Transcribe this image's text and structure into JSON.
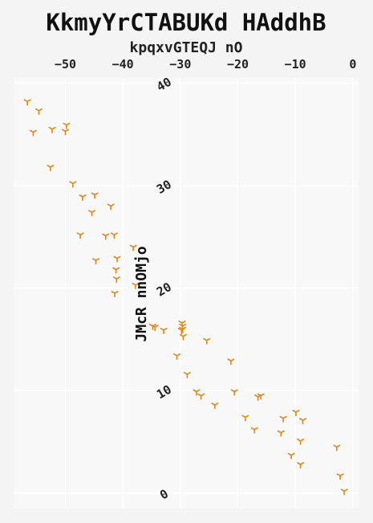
{
  "chart_data": {
    "type": "scatter",
    "title": "KkmyYrCTABUKd HAddhB",
    "xlabel": "kpqxvGTEQJ nO",
    "ylabel": "JMcR nnOMjo",
    "xlim": [
      -59,
      1
    ],
    "ylim": [
      -1.5,
      40.5
    ],
    "xticks": [
      -50,
      -40,
      -30,
      -20,
      -10,
      0
    ],
    "yticks": [
      0,
      10,
      20,
      30,
      40
    ],
    "xtick_labels": [
      "−50",
      "−40",
      "−30",
      "−20",
      "−10",
      "0"
    ],
    "ytick_labels": [
      "0",
      "10",
      "20",
      "30",
      "40"
    ],
    "x_axis_position": "top",
    "grid": true,
    "marker": "tri_down",
    "color": "#e08a1e",
    "x": [
      -56.6,
      -54.6,
      -55.6,
      -49.8,
      -52.3,
      -50.0,
      -52.6,
      -48.7,
      -47.0,
      -44.9,
      -42.1,
      -45.4,
      -43.0,
      -47.4,
      -41.5,
      -38.2,
      -44.7,
      -41.0,
      -41.2,
      -41.1,
      -41.4,
      -37.8,
      -34.8,
      -34.4,
      -32.9,
      -29.7,
      -29.6,
      -29.8,
      -29.5,
      -29.6,
      -25.4,
      -30.6,
      -28.8,
      -21.2,
      -20.6,
      -27.2,
      -26.4,
      -16.5,
      -16.0,
      -24.0,
      -18.7,
      -9.9,
      -12.1,
      -8.7,
      -17.1,
      -12.5,
      -9.1,
      -2.8,
      -10.7,
      -9.1,
      -2.2,
      -1.5
    ],
    "y": [
      38.2,
      37.3,
      35.2,
      35.9,
      35.5,
      35.3,
      31.8,
      30.2,
      28.9,
      29.1,
      28.0,
      27.4,
      25.1,
      25.2,
      25.2,
      24.0,
      22.7,
      22.9,
      21.8,
      20.9,
      19.5,
      20.3,
      16.3,
      16.2,
      15.9,
      16.6,
      16.3,
      15.9,
      15.3,
      16.0,
      14.9,
      13.4,
      11.6,
      12.9,
      9.9,
      9.9,
      9.5,
      9.4,
      9.5,
      8.6,
      7.4,
      7.9,
      7.3,
      7.1,
      6.2,
      5.9,
      5.1,
      4.5,
      3.7,
      2.8,
      1.7,
      0.2
    ]
  }
}
